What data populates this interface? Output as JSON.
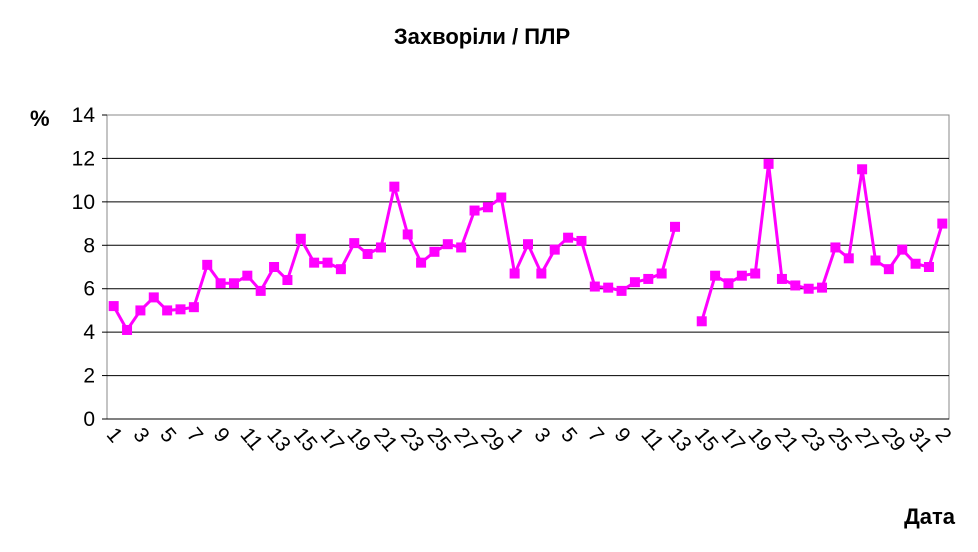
{
  "chart_data": {
    "type": "line",
    "title": "Захворіли / ПЛР",
    "y_label": "%",
    "x_label": "Дата",
    "categories": [
      "1",
      null,
      "3",
      null,
      "5",
      null,
      "7",
      null,
      "9",
      null,
      "11",
      null,
      "13",
      null,
      "15",
      null,
      "17",
      null,
      "19",
      null,
      "21",
      null,
      "23",
      null,
      "25",
      null,
      "27",
      null,
      "29",
      null,
      "1",
      null,
      "3",
      null,
      "5",
      null,
      "7",
      null,
      "9",
      null,
      "11",
      null,
      "13",
      null,
      "15",
      null,
      "17",
      null,
      "19",
      null,
      "21",
      null,
      "23",
      null,
      "25",
      null,
      "27",
      null,
      "29",
      null,
      "31",
      null,
      "2"
    ],
    "series": [
      {
        "name": "Захворіли / ПЛР",
        "color": "#ff00ff",
        "values": [
          5.2,
          4.1,
          5.0,
          5.6,
          5.0,
          5.05,
          5.15,
          7.1,
          6.25,
          6.25,
          6.6,
          5.9,
          7.0,
          6.4,
          8.3,
          7.2,
          7.2,
          6.9,
          8.1,
          7.6,
          7.9,
          10.7,
          8.5,
          7.2,
          7.7,
          8.05,
          7.9,
          9.6,
          9.75,
          10.2,
          6.7,
          8.05,
          6.7,
          7.8,
          8.35,
          8.2,
          6.1,
          6.05,
          5.9,
          6.3,
          6.45,
          6.7,
          8.85,
          null,
          4.5,
          6.6,
          6.25,
          6.6,
          6.7,
          11.75,
          6.45,
          6.15,
          6.0,
          6.05,
          7.9,
          7.4,
          11.5,
          7.3,
          6.9,
          7.8,
          7.15,
          7.0,
          9.0
        ]
      }
    ],
    "ylim": [
      0,
      14
    ],
    "yticks": [
      0,
      2,
      4,
      6,
      8,
      10,
      12,
      14
    ],
    "grid": true
  }
}
